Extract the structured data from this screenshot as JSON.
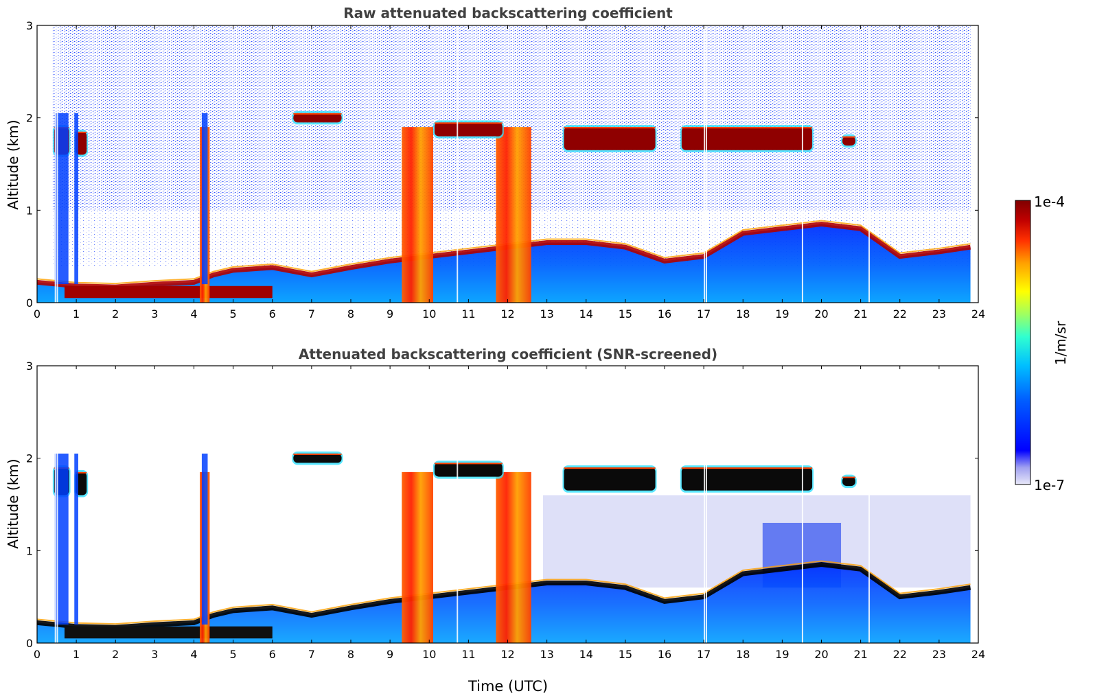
{
  "chart_data": [
    {
      "type": "heatmap",
      "title": "Raw attenuated backscattering coefficient",
      "xlabel": "",
      "ylabel": "Altitude (km)",
      "xlim": [
        0,
        24
      ],
      "ylim": [
        0,
        3
      ],
      "xticks": [
        "0",
        "1",
        "2",
        "3",
        "4",
        "5",
        "6",
        "7",
        "8",
        "9",
        "10",
        "11",
        "12",
        "13",
        "14",
        "15",
        "16",
        "17",
        "18",
        "19",
        "20",
        "21",
        "22",
        "23",
        "24"
      ],
      "yticks": [
        "0",
        "1",
        "2",
        "3"
      ],
      "layers": {
        "boundary_layer_top_km": [
          [
            0,
            0.22
          ],
          [
            1,
            0.18
          ],
          [
            2,
            0.17
          ],
          [
            3,
            0.2
          ],
          [
            4,
            0.22
          ],
          [
            4.5,
            0.3
          ],
          [
            5,
            0.35
          ],
          [
            6,
            0.38
          ],
          [
            7,
            0.3
          ],
          [
            8,
            0.38
          ],
          [
            9,
            0.45
          ],
          [
            10,
            0.5
          ],
          [
            11,
            0.55
          ],
          [
            12,
            0.6
          ],
          [
            13,
            0.65
          ],
          [
            14,
            0.65
          ],
          [
            15,
            0.6
          ],
          [
            16,
            0.45
          ],
          [
            17,
            0.5
          ],
          [
            18,
            0.75
          ],
          [
            19,
            0.8
          ],
          [
            20,
            0.85
          ],
          [
            21,
            0.8
          ],
          [
            22,
            0.5
          ],
          [
            23,
            0.55
          ],
          [
            23.8,
            0.6
          ]
        ],
        "cloud_segments": [
          [
            0.4,
            0.85,
            1.6,
            1.9
          ],
          [
            0.95,
            1.3,
            1.6,
            1.85
          ],
          [
            6.5,
            7.8,
            1.95,
            2.05
          ],
          [
            10.1,
            11.9,
            1.8,
            1.95
          ],
          [
            13.4,
            15.8,
            1.65,
            1.9
          ],
          [
            16.4,
            19.8,
            1.65,
            1.9
          ],
          [
            20.5,
            20.9,
            1.7,
            1.8
          ]
        ],
        "thick_columns": [
          [
            9.3,
            10.1
          ],
          [
            4.15,
            4.4
          ],
          [
            11.7,
            12.6
          ]
        ]
      }
    },
    {
      "type": "heatmap",
      "title": "Attenuated backscattering coefficient (SNR-screened)",
      "xlabel": "Time (UTC)",
      "ylabel": "Altitude (km)",
      "xlim": [
        0,
        24
      ],
      "ylim": [
        0,
        3
      ],
      "xticks": [
        "0",
        "1",
        "2",
        "3",
        "4",
        "5",
        "6",
        "7",
        "8",
        "9",
        "10",
        "11",
        "12",
        "13",
        "14",
        "15",
        "16",
        "17",
        "18",
        "19",
        "20",
        "21",
        "22",
        "23",
        "24"
      ],
      "yticks": [
        "0",
        "1",
        "2",
        "3"
      ]
    }
  ],
  "colorbar": {
    "label": "1/m/sr",
    "max_label": "1e-4",
    "min_label": "1e-7",
    "range": [
      1e-07,
      0.0001
    ],
    "colormap": [
      "#e8e8f8",
      "#a0a0f0",
      "#0000ff",
      "#0060ff",
      "#00c0ff",
      "#30ffd0",
      "#a0ff60",
      "#ffff00",
      "#ffa000",
      "#ff3000",
      "#c00000",
      "#7f0000"
    ]
  }
}
